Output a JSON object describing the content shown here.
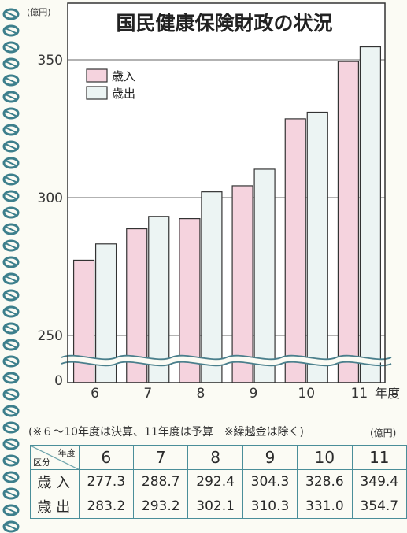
{
  "chart_data": {
    "type": "bar",
    "title": "国民健康保険財政の状況",
    "unit": "(億円)",
    "xlabel": "年度",
    "categories": [
      "6",
      "7",
      "8",
      "9",
      "10",
      "11"
    ],
    "series": [
      {
        "name": "歳入",
        "color": "#f5d3de",
        "values": [
          277.3,
          288.7,
          292.4,
          304.3,
          328.6,
          349.4
        ]
      },
      {
        "name": "歳出",
        "color": "#ecf4f3",
        "values": [
          283.2,
          293.2,
          302.1,
          310.3,
          331.0,
          354.7
        ]
      }
    ],
    "yticks": [
      "0",
      "250",
      "300",
      "350"
    ],
    "axis_break": true,
    "ylim_upper": [
      245,
      360
    ],
    "grid": true,
    "legend": "top-left"
  },
  "note": "(※６～10年度は決算、11年度は予算　※繰越金は除く)",
  "table": {
    "unit": "(億円)",
    "corner_top": "年度",
    "corner_bottom": "区分",
    "years": [
      "6",
      "7",
      "8",
      "9",
      "10",
      "11"
    ],
    "rows": [
      {
        "label": "歳入",
        "values": [
          "277.3",
          "288.7",
          "292.4",
          "304.3",
          "328.6",
          "349.4"
        ]
      },
      {
        "label": "歳出",
        "values": [
          "283.2",
          "293.2",
          "302.1",
          "310.3",
          "331.0",
          "354.7"
        ]
      }
    ]
  },
  "colors": {
    "accent_spiral": "#3d7f8c",
    "frame": "#333333",
    "table_border": "#4a8e99"
  }
}
